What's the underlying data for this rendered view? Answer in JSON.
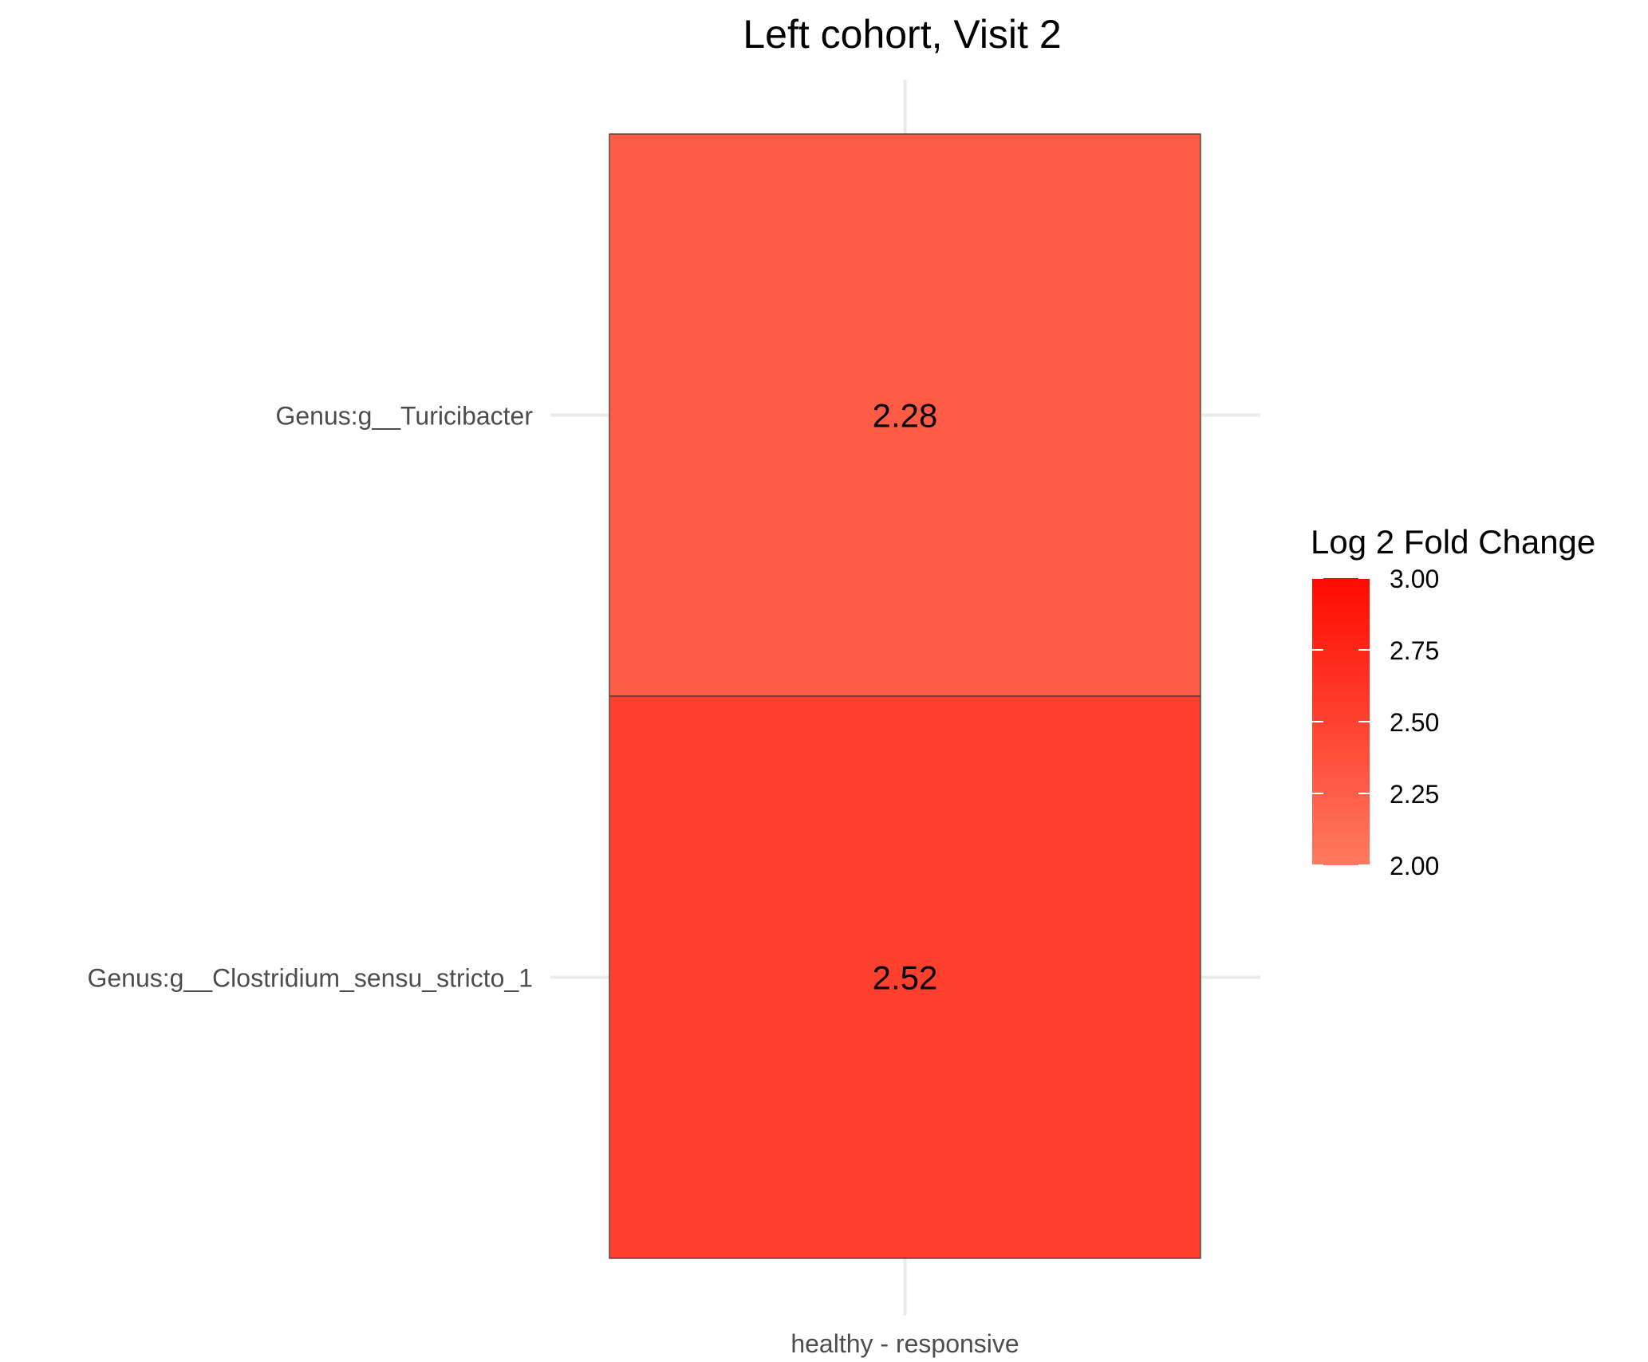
{
  "chart_data": {
    "type": "heatmap",
    "title": "Left cohort, Visit 2",
    "x_categories": [
      "healthy - responsive"
    ],
    "y_categories": [
      "Genus:g__Turicibacter",
      "Genus:g__Clostridium_sensu_stricto_1"
    ],
    "cells": [
      {
        "x": "healthy - responsive",
        "y": "Genus:g__Turicibacter",
        "value": 2.28,
        "label": "2.28"
      },
      {
        "x": "healthy - responsive",
        "y": "Genus:g__Clostridium_sensu_stricto_1",
        "value": 2.52,
        "label": "2.52"
      }
    ],
    "legend": {
      "title": "Log 2 Fold Change",
      "range": [
        2.0,
        3.0
      ],
      "ticks": [
        3.0,
        2.75,
        2.5,
        2.25,
        2.0
      ],
      "tick_labels": [
        "3.00",
        "2.75",
        "2.50",
        "2.25",
        "2.00"
      ],
      "color_low": "#ff7a60",
      "color_high": "#ff0a00",
      "placement": "right"
    },
    "grid": true,
    "grid_color": "#ebebeb"
  }
}
